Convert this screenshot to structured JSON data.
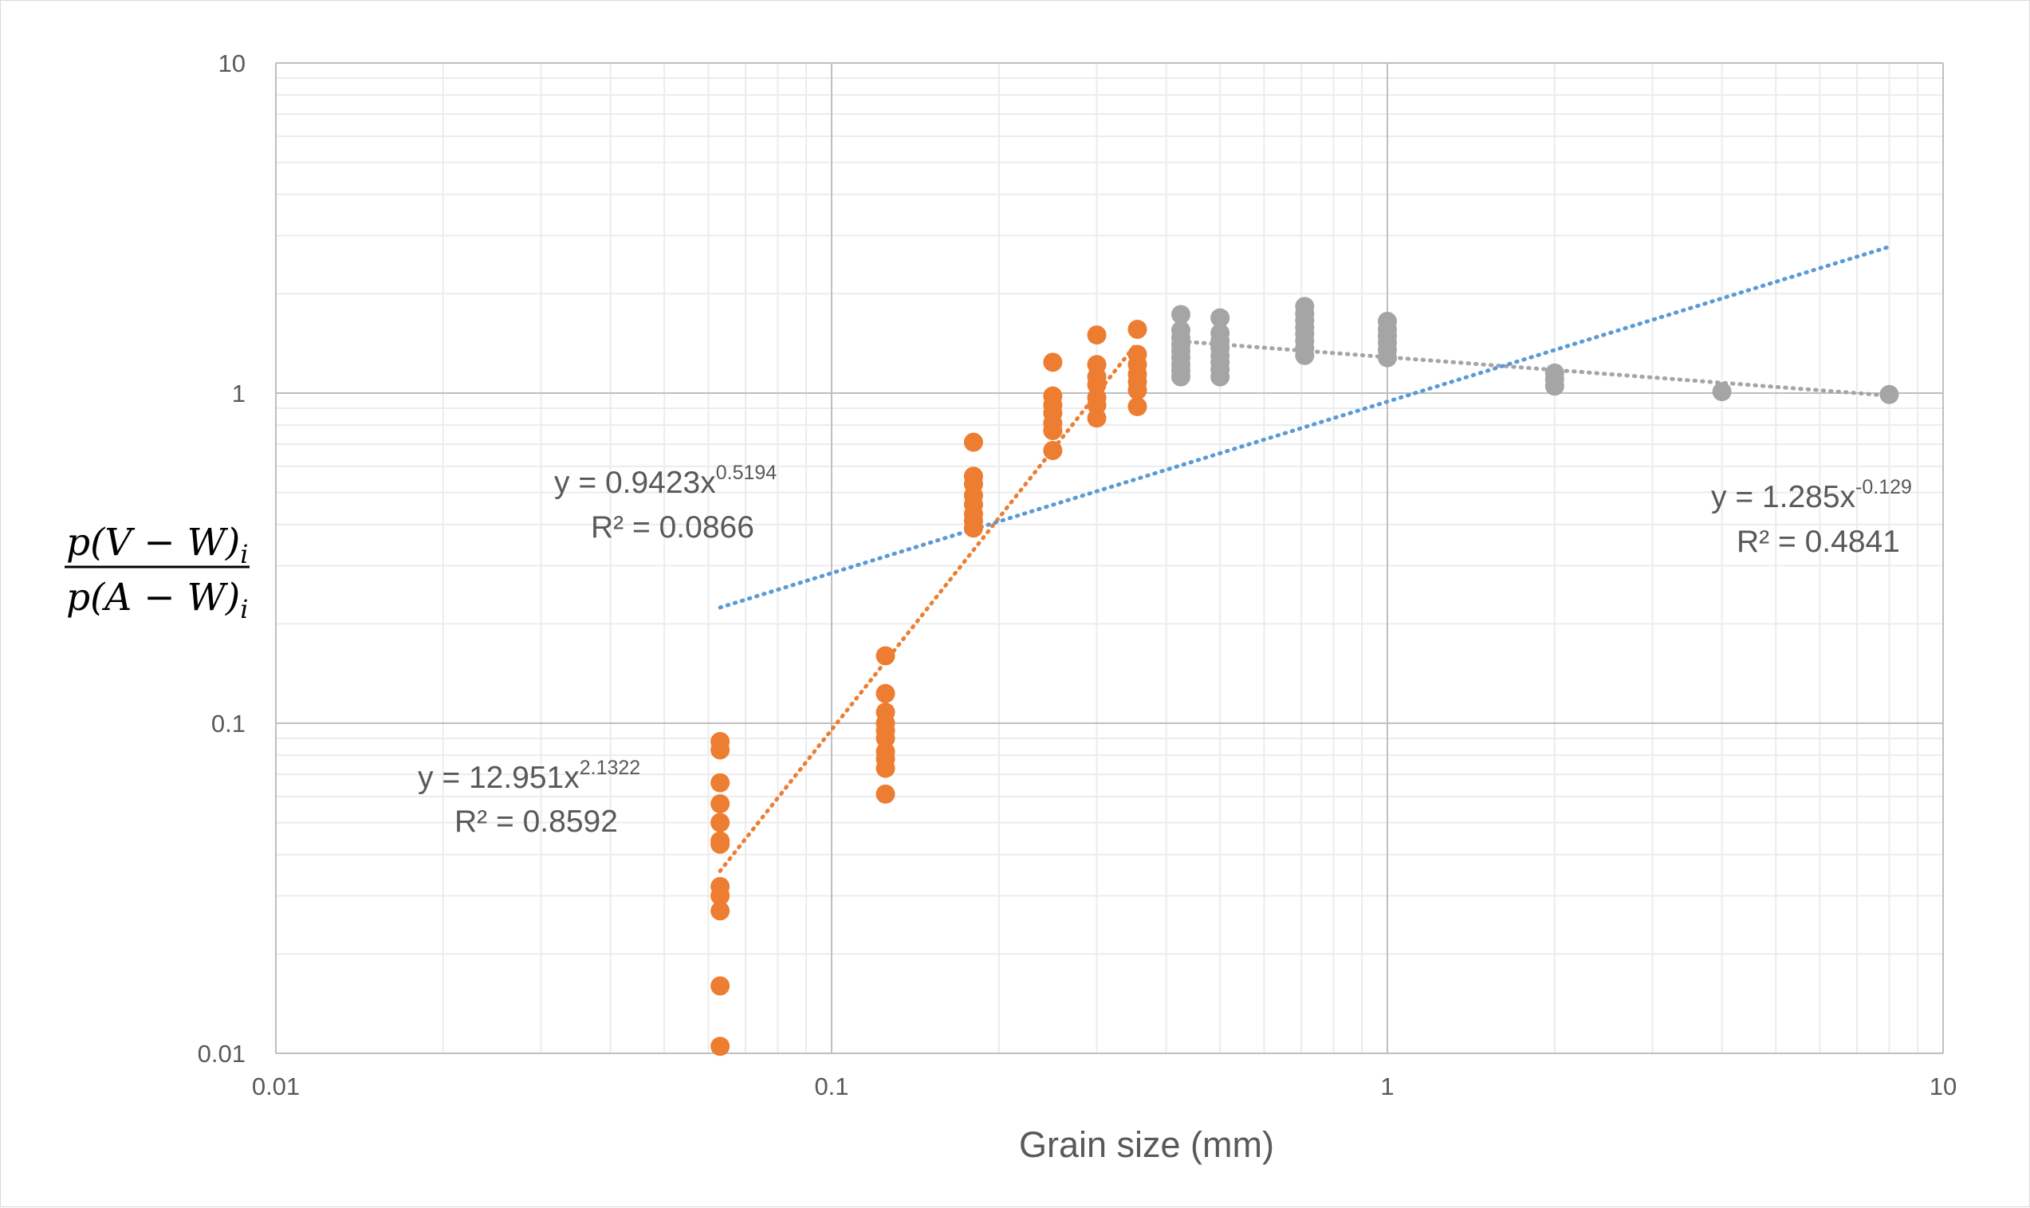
{
  "chart_data": {
    "type": "scatter",
    "xlabel": "Grain size (mm)",
    "ylabel": {
      "numerator": "p(V − W)",
      "denominator": "p(A − W)",
      "subscript": "i"
    },
    "xscale": "log",
    "yscale": "log",
    "xlim": [
      0.01,
      10
    ],
    "ylim": [
      0.01,
      10
    ],
    "x_ticks": [
      "0.01",
      "0.1",
      "1",
      "10"
    ],
    "y_ticks": [
      "0.01",
      "0.1",
      "1",
      "10"
    ],
    "grid": "major and minor",
    "legend": "none",
    "series": [
      {
        "color": "#ED7D31",
        "points": [
          [
            0.063,
            0.088
          ],
          [
            0.063,
            0.083
          ],
          [
            0.063,
            0.066
          ],
          [
            0.063,
            0.057
          ],
          [
            0.063,
            0.05
          ],
          [
            0.063,
            0.044
          ],
          [
            0.063,
            0.043
          ],
          [
            0.063,
            0.032
          ],
          [
            0.063,
            0.03
          ],
          [
            0.063,
            0.027
          ],
          [
            0.063,
            0.016
          ],
          [
            0.063,
            0.0105
          ],
          [
            0.125,
            0.16
          ],
          [
            0.125,
            0.123
          ],
          [
            0.125,
            0.108
          ],
          [
            0.125,
            0.1
          ],
          [
            0.125,
            0.095
          ],
          [
            0.125,
            0.09
          ],
          [
            0.125,
            0.082
          ],
          [
            0.125,
            0.078
          ],
          [
            0.125,
            0.073
          ],
          [
            0.125,
            0.061
          ],
          [
            0.18,
            0.71
          ],
          [
            0.18,
            0.56
          ],
          [
            0.18,
            0.53
          ],
          [
            0.18,
            0.49
          ],
          [
            0.18,
            0.46
          ],
          [
            0.18,
            0.43
          ],
          [
            0.18,
            0.41
          ],
          [
            0.18,
            0.39
          ],
          [
            0.25,
            1.24
          ],
          [
            0.25,
            0.98
          ],
          [
            0.25,
            0.92
          ],
          [
            0.25,
            0.87
          ],
          [
            0.25,
            0.81
          ],
          [
            0.25,
            0.77
          ],
          [
            0.25,
            0.67
          ],
          [
            0.3,
            1.5
          ],
          [
            0.3,
            1.22
          ],
          [
            0.3,
            1.12
          ],
          [
            0.3,
            1.06
          ],
          [
            0.3,
            0.97
          ],
          [
            0.3,
            0.92
          ],
          [
            0.3,
            0.84
          ],
          [
            0.355,
            1.56
          ],
          [
            0.355,
            1.31
          ],
          [
            0.355,
            1.22
          ],
          [
            0.355,
            1.14
          ],
          [
            0.355,
            1.08
          ],
          [
            0.355,
            1.02
          ],
          [
            0.355,
            0.91
          ]
        ],
        "trendline": {
          "type": "power",
          "a": 12.951,
          "b": 2.1322,
          "x_range": [
            0.063,
            0.355
          ],
          "equation_base": "y = 12.951x",
          "equation_exp": "2.1322",
          "r2_text": "R² = 0.8592"
        }
      },
      {
        "color": "#A5A5A5",
        "points": [
          [
            0.425,
            1.73
          ],
          [
            0.425,
            1.55
          ],
          [
            0.425,
            1.47
          ],
          [
            0.425,
            1.4
          ],
          [
            0.425,
            1.34
          ],
          [
            0.425,
            1.28
          ],
          [
            0.425,
            1.22
          ],
          [
            0.425,
            1.17
          ],
          [
            0.425,
            1.12
          ],
          [
            0.5,
            1.69
          ],
          [
            0.5,
            1.52
          ],
          [
            0.5,
            1.44
          ],
          [
            0.5,
            1.37
          ],
          [
            0.5,
            1.3
          ],
          [
            0.5,
            1.24
          ],
          [
            0.5,
            1.18
          ],
          [
            0.5,
            1.12
          ],
          [
            0.71,
            1.83
          ],
          [
            0.71,
            1.74
          ],
          [
            0.71,
            1.66
          ],
          [
            0.71,
            1.58
          ],
          [
            0.71,
            1.51
          ],
          [
            0.71,
            1.44
          ],
          [
            0.71,
            1.37
          ],
          [
            0.71,
            1.3
          ],
          [
            1.0,
            1.65
          ],
          [
            1.0,
            1.56
          ],
          [
            1.0,
            1.49
          ],
          [
            1.0,
            1.42
          ],
          [
            1.0,
            1.35
          ],
          [
            1.0,
            1.28
          ],
          [
            2.0,
            1.15
          ],
          [
            2.0,
            1.1
          ],
          [
            2.0,
            1.05
          ],
          [
            4.0,
            1.01
          ],
          [
            8.0,
            0.99
          ]
        ],
        "trendline": {
          "type": "power",
          "a": 1.285,
          "b": -0.129,
          "x_range": [
            0.425,
            8.0
          ],
          "equation_base": "y = 1.285x",
          "equation_exp": "-0.129",
          "r2_text": "R² = 0.4841"
        }
      },
      {
        "color": "#5B9BD5",
        "points": [],
        "trendline": {
          "type": "power",
          "a": 0.9423,
          "b": 0.5194,
          "x_range": [
            0.063,
            8.0
          ],
          "equation_base": "y = 0.9423x",
          "equation_exp": "0.5194",
          "r2_text": "R² = 0.0866"
        }
      }
    ]
  }
}
